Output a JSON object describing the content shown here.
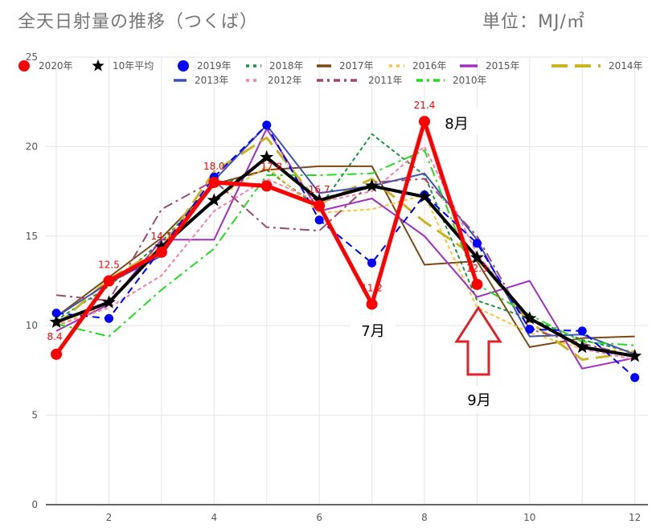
{
  "title": "全天日射量の推移（つくば）",
  "unit_label": "単位：MJ/㎡",
  "colors": {
    "background": "#ffffff",
    "grid": "#e6e6e6",
    "axis": "#333333",
    "tick_text": "#555555",
    "title_text": "#757575",
    "label_red": "#ff0000",
    "arrow_red": "#e0202a"
  },
  "annotations": {
    "aug": "8月",
    "jul": "7月",
    "sep": "9月"
  },
  "chart_data": {
    "type": "line",
    "xlim": [
      0.8,
      12.25
    ],
    "ylim": [
      0,
      25
    ],
    "x_ticks": [
      2,
      4,
      6,
      8,
      10,
      12
    ],
    "y_ticks": [
      0,
      5,
      10,
      15,
      20,
      25
    ],
    "grid": true,
    "legend_position": "top",
    "x": [
      1,
      2,
      3,
      4,
      5,
      6,
      7,
      8,
      9,
      10,
      11,
      12
    ],
    "series": [
      {
        "name": "2020年",
        "color": "#ff0000",
        "dash": "solid",
        "width": 5,
        "marker": "circle",
        "values": [
          8.4,
          12.5,
          14.1,
          18.0,
          17.8,
          16.7,
          11.2,
          21.4,
          12.3,
          null,
          null,
          null
        ],
        "labels": [
          "8.4",
          "12.5",
          "14.1",
          "18.0",
          "17.8",
          "16.7",
          "11.2",
          "21.4",
          "12.3",
          null,
          null,
          null
        ]
      },
      {
        "name": "10年平均",
        "color": "#000000",
        "dash": "solid",
        "width": 4,
        "marker": "star",
        "values": [
          10.2,
          11.3,
          14.4,
          17.0,
          19.4,
          17.0,
          17.8,
          17.2,
          13.8,
          10.4,
          8.8,
          8.3
        ]
      },
      {
        "name": "2019年",
        "color": "#0000ff",
        "dash": "dash",
        "width": 2,
        "marker": "circle",
        "values": [
          10.7,
          10.4,
          14.3,
          18.3,
          21.2,
          15.9,
          13.5,
          17.3,
          14.6,
          9.8,
          9.7,
          7.1
        ]
      },
      {
        "name": "2018年",
        "color": "#1a9641",
        "dash": "dot",
        "width": 2,
        "marker": "none",
        "values": [
          10.3,
          12.2,
          14.7,
          17.8,
          18.7,
          16.6,
          20.7,
          18.4,
          11.4,
          10.4,
          9.2,
          8.5
        ]
      },
      {
        "name": "2017年",
        "color": "#7a4a14",
        "dash": "solid",
        "width": 2,
        "marker": "none",
        "values": [
          10.5,
          12.7,
          14.9,
          17.9,
          18.7,
          18.9,
          18.9,
          13.4,
          13.6,
          8.8,
          9.3,
          9.4
        ]
      },
      {
        "name": "2016年",
        "color": "#ffc333",
        "dash": "dot",
        "width": 2,
        "marker": "none",
        "values": [
          10.0,
          11.2,
          14.6,
          17.0,
          18.9,
          16.3,
          16.5,
          17.3,
          11.0,
          9.6,
          8.7,
          8.6
        ]
      },
      {
        "name": "2015年",
        "color": "#a030c0",
        "dash": "solid",
        "width": 2,
        "marker": "none",
        "values": [
          9.7,
          11.2,
          14.8,
          14.8,
          21.0,
          16.4,
          17.1,
          15.0,
          11.6,
          12.5,
          7.6,
          8.2
        ]
      },
      {
        "name": "2014年",
        "color": "#c8b520",
        "dash": "longdash",
        "width": 3,
        "marker": "none",
        "values": [
          10.0,
          12.6,
          14.3,
          18.6,
          20.5,
          16.8,
          18.2,
          15.8,
          13.8,
          10.2,
          8.1,
          8.5
        ]
      },
      {
        "name": "2013年",
        "color": "#3f51b5",
        "dash": "solid",
        "width": 2,
        "marker": "none",
        "values": [
          10.5,
          12.4,
          13.9,
          18.1,
          21.2,
          17.4,
          17.8,
          18.5,
          14.8,
          9.4,
          9.5,
          8.4
        ]
      },
      {
        "name": "2012年",
        "color": "#f77fa9",
        "dash": "dot",
        "width": 2,
        "marker": "none",
        "values": [
          10.0,
          11.0,
          12.8,
          16.4,
          18.2,
          16.9,
          17.5,
          20.0,
          14.0,
          10.4,
          8.7,
          8.1
        ]
      },
      {
        "name": "2011年",
        "color": "#9c4a6e",
        "dash": "dashdot",
        "width": 2,
        "marker": "none",
        "values": [
          11.7,
          11.4,
          16.5,
          18.1,
          15.5,
          15.3,
          18.0,
          18.2,
          15.0,
          9.8,
          9.0,
          8.3
        ]
      },
      {
        "name": "2010年",
        "color": "#22dd22",
        "dash": "dashdot",
        "width": 2,
        "marker": "none",
        "values": [
          10.1,
          9.4,
          12.0,
          14.3,
          18.4,
          18.4,
          18.5,
          19.8,
          12.3,
          10.6,
          9.1,
          8.9
        ]
      }
    ]
  }
}
